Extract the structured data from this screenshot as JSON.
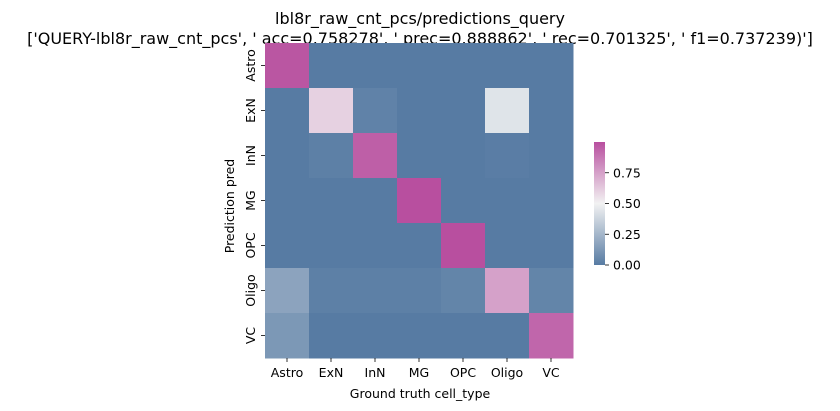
{
  "chart_data": {
    "type": "heatmap",
    "title": "lbl8r_raw_cnt_pcs/predictions_query",
    "subtitle": "['QUERY-lbl8r_raw_cnt_pcs', ' acc=0.758278', '  prec=0.888862', ' rec=0.701325', ' f1=0.737239)']",
    "xlabel": "Ground truth cell_type",
    "ylabel": "Prediction pred",
    "x_categories": [
      "Astro",
      "ExN",
      "InN",
      "MG",
      "OPC",
      "Oligo",
      "VC"
    ],
    "y_categories": [
      "Astro",
      "ExN",
      "InN",
      "MG",
      "OPC",
      "Oligo",
      "VC"
    ],
    "values": [
      [
        0.98,
        0.0,
        0.0,
        0.0,
        0.0,
        0.0,
        0.0
      ],
      [
        0.0,
        0.6,
        0.03,
        0.0,
        0.0,
        0.44,
        0.0
      ],
      [
        0.0,
        0.02,
        0.95,
        0.0,
        0.0,
        0.01,
        0.0
      ],
      [
        0.0,
        0.0,
        0.0,
        1.0,
        0.0,
        0.0,
        0.0
      ],
      [
        0.0,
        0.0,
        0.0,
        0.0,
        1.0,
        0.0,
        0.0
      ],
      [
        0.17,
        0.02,
        0.02,
        0.02,
        0.04,
        0.75,
        0.04
      ],
      [
        0.12,
        0.0,
        0.0,
        0.0,
        0.0,
        0.0,
        0.93
      ]
    ],
    "colorbar": {
      "range": [
        0,
        1
      ],
      "ticks": [
        "0.00",
        "0.25",
        "0.50",
        "0.75"
      ],
      "tick_values": [
        0,
        0.25,
        0.5,
        0.75
      ],
      "colors": [
        "#577ba3",
        "#f2f2f2",
        "#b84f9f"
      ]
    },
    "grid": false,
    "legend": "colorbar right"
  }
}
